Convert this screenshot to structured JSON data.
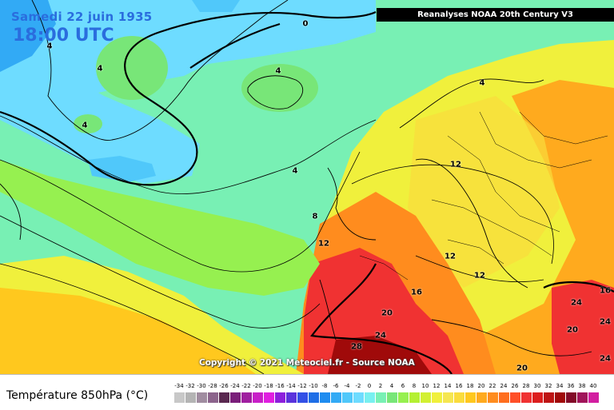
{
  "header": {
    "date": "Samedi 22 juin 1935",
    "time": "18:00 UTC",
    "source": "Reanalyses NOAA 20th Century V3"
  },
  "copyright": "Copyright © 2021 Meteociel.fr - Source NOAA",
  "legend": {
    "title": "Température 850hPa (°C)",
    "ticks": [
      "-34",
      "-32",
      "-30",
      "-28",
      "-26",
      "-24",
      "-22",
      "-20",
      "-18",
      "-16",
      "-14",
      "-12",
      "-10",
      "-8",
      "-6",
      "-4",
      "-2",
      "0",
      "2",
      "4",
      "6",
      "8",
      "10",
      "12",
      "14",
      "16",
      "18",
      "20",
      "22",
      "24",
      "26",
      "28",
      "30",
      "32",
      "34",
      "36",
      "38",
      "40"
    ],
    "colors": [
      "#c8c8c8",
      "#b4b4b4",
      "#a08ca0",
      "#8c648c",
      "#5a2850",
      "#7a1e7a",
      "#a01ea0",
      "#c81ec8",
      "#e01ee0",
      "#8c1edc",
      "#5a32dc",
      "#3250e6",
      "#1e6ee6",
      "#1e8cf0",
      "#32aaf5",
      "#50c8fa",
      "#6edcff",
      "#78f0f0",
      "#78f0b4",
      "#78e678",
      "#96f050",
      "#b4f032",
      "#d2f032",
      "#f0f03c",
      "#f5e650",
      "#fadc3c",
      "#ffc81e",
      "#ffaa1e",
      "#ff8c1e",
      "#ff6e1e",
      "#ff5028",
      "#f03232",
      "#dc1e1e",
      "#be1414",
      "#a00a0a",
      "#820a28",
      "#a0145a",
      "#d21ea0"
    ]
  },
  "contour_labels": [
    {
      "text": "4"
    },
    {
      "text": "4"
    },
    {
      "text": "4"
    },
    {
      "text": "0"
    },
    {
      "text": "4"
    },
    {
      "text": "4"
    },
    {
      "text": "8"
    },
    {
      "text": "12"
    },
    {
      "text": "12"
    },
    {
      "text": "12"
    },
    {
      "text": "16"
    },
    {
      "text": "16"
    },
    {
      "text": "20"
    },
    {
      "text": "24"
    },
    {
      "text": "28"
    },
    {
      "text": "24"
    },
    {
      "text": "20"
    },
    {
      "text": "24"
    },
    {
      "text": "24"
    },
    {
      "text": "20"
    },
    {
      "text": "4"
    },
    {
      "text": "12"
    }
  ]
}
